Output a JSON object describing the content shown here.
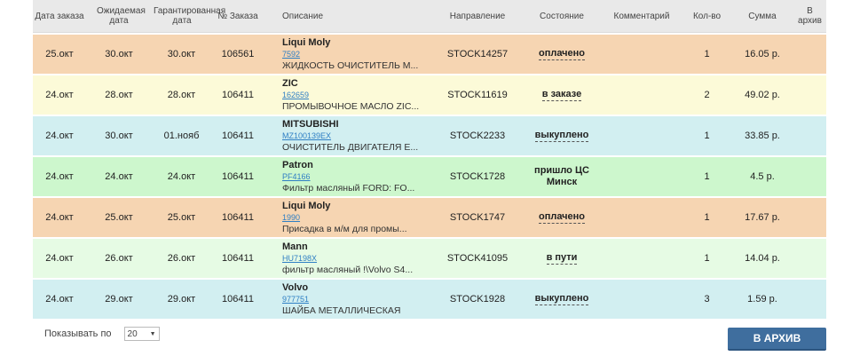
{
  "headers": [
    "Дата заказа",
    "Ожидаемая дата",
    "Гарантированная дата",
    "№ Заказа",
    "Описание",
    "Направление",
    "Состояние",
    "Комментарий",
    "Кол-во",
    "Сумма",
    "В архив"
  ],
  "colors": {
    "ordered": "#f6d5b2",
    "in_order": "#fcfad8",
    "bought": "#d2eff1",
    "arrived": "#cdf7cd",
    "in_transit": "#e6fbe4",
    "header": "#e9e9e9",
    "button": "#3f6e9e"
  },
  "rows": [
    {
      "date": "25.окт",
      "expected": "30.окт",
      "guaranteed": "30.окт",
      "order": "106561",
      "brand": "Liqui Moly",
      "code": "7592",
      "desc": "ЖИДКОСТЬ ОЧИСТИТЕЛЬ М...",
      "direction": "STOCK14257",
      "status": "оплачено",
      "status2": "",
      "comment": "",
      "qty": "1",
      "sum": "16.05 р.",
      "color": "#f6d5b2"
    },
    {
      "date": "24.окт",
      "expected": "28.окт",
      "guaranteed": "28.окт",
      "order": "106411",
      "brand": "ZIC",
      "code": "162659",
      "desc": "ПРОМЫВОЧНОЕ МАСЛО ZIC...",
      "direction": "STOCK11619",
      "status": "в заказе",
      "status2": "",
      "comment": "",
      "qty": "2",
      "sum": "49.02 р.",
      "color": "#fcfad8"
    },
    {
      "date": "24.окт",
      "expected": "30.окт",
      "guaranteed": "01.нояб",
      "order": "106411",
      "brand": "MITSUBISHI",
      "code": "MZ100139EX",
      "desc": "ОЧИСТИТЕЛЬ ДВИГАТЕЛЯ Е...",
      "direction": "STOCK2233",
      "status": "выкуплено",
      "status2": "",
      "comment": "",
      "qty": "1",
      "sum": "33.85 р.",
      "color": "#d2eff1"
    },
    {
      "date": "24.окт",
      "expected": "24.окт",
      "guaranteed": "24.окт",
      "order": "106411",
      "brand": "Patron",
      "code": "PF4166",
      "desc": "Фильтр масляный FORD: FO...",
      "direction": "STOCK1728",
      "status": "пришло ЦС",
      "status2": "Минск",
      "comment": "",
      "qty": "1",
      "sum": "4.5 р.",
      "color": "#cdf7cd"
    },
    {
      "date": "24.окт",
      "expected": "25.окт",
      "guaranteed": "25.окт",
      "order": "106411",
      "brand": "Liqui Moly",
      "code": "1990",
      "desc": "Присадка в м/м для промы...",
      "direction": "STOCK1747",
      "status": "оплачено",
      "status2": "",
      "comment": "",
      "qty": "1",
      "sum": "17.67 р.",
      "color": "#f6d5b2"
    },
    {
      "date": "24.окт",
      "expected": "26.окт",
      "guaranteed": "26.окт",
      "order": "106411",
      "brand": "Mann",
      "code": "HU7198X",
      "desc": "фильтр масляный !\\Volvo S4...",
      "direction": "STOCK41095",
      "status": "в пути",
      "status2": "",
      "comment": "",
      "qty": "1",
      "sum": "14.04 р.",
      "color": "#e6fbe4"
    },
    {
      "date": "24.окт",
      "expected": "29.окт",
      "guaranteed": "29.окт",
      "order": "106411",
      "brand": "Volvo",
      "code": "977751",
      "desc": "ШАЙБА МЕТАЛЛИЧЕСКАЯ",
      "direction": "STOCK1928",
      "status": "выкуплено",
      "status2": "",
      "comment": "",
      "qty": "3",
      "sum": "1.59 р.",
      "color": "#d2eff1"
    }
  ],
  "footer": {
    "show_label": "Показывать по",
    "page_size": "20",
    "archive_button": "В АРХИВ"
  }
}
